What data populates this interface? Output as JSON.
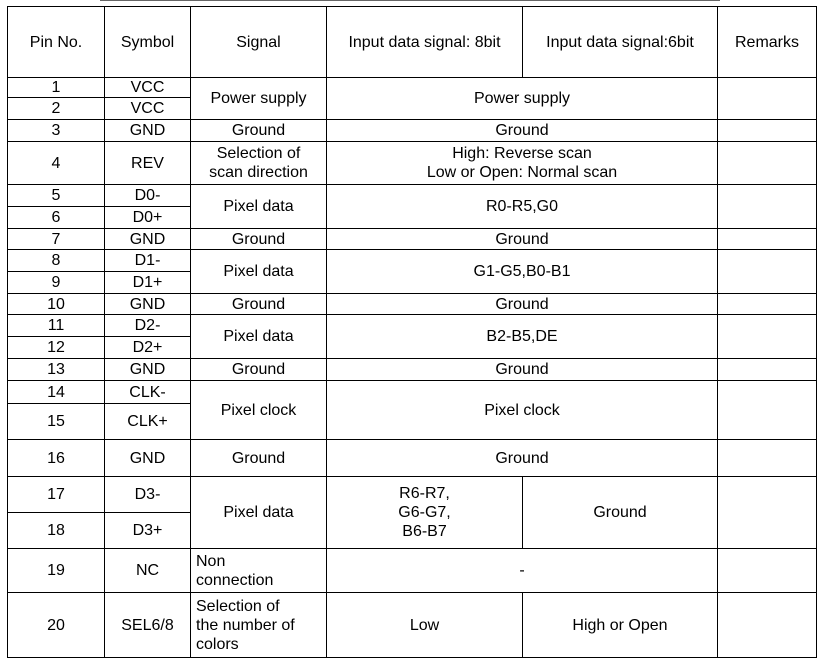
{
  "headers": [
    "Pin No.",
    "Symbol",
    "Signal",
    "Input data signal: 8bit",
    "Input data signal:6bit",
    "Remarks"
  ],
  "rows": {
    "r1": {
      "pin": "1",
      "sym": "VCC",
      "signal": "Power supply",
      "data": "Power supply"
    },
    "r2": {
      "pin": "2",
      "sym": "VCC"
    },
    "r3": {
      "pin": "3",
      "sym": "GND",
      "signal": "Ground",
      "data": "Ground"
    },
    "r4": {
      "pin": "4",
      "sym": "REV",
      "signal1": "Selection of",
      "signal2": "scan direction",
      "data1": "High: Reverse scan",
      "data2": "Low or Open: Normal scan"
    },
    "r5": {
      "pin": "5",
      "sym": "D0-",
      "signal": "Pixel data",
      "data": "R0-R5,G0"
    },
    "r6": {
      "pin": "6",
      "sym": "D0+"
    },
    "r7": {
      "pin": "7",
      "sym": "GND",
      "signal": "Ground",
      "data": "Ground"
    },
    "r8": {
      "pin": "8",
      "sym": "D1-",
      "signal": "Pixel data",
      "data": "G1-G5,B0-B1"
    },
    "r9": {
      "pin": "9",
      "sym": "D1+"
    },
    "r10": {
      "pin": "10",
      "sym": "GND",
      "signal": "Ground",
      "data": "Ground"
    },
    "r11": {
      "pin": "11",
      "sym": "D2-",
      "signal": "Pixel data",
      "data": "B2-B5,DE"
    },
    "r12": {
      "pin": "12",
      "sym": "D2+"
    },
    "r13": {
      "pin": "13",
      "sym": "GND",
      "signal": "Ground",
      "data": "Ground"
    },
    "r14": {
      "pin": "14",
      "sym": "CLK-",
      "signal": "Pixel clock",
      "data": "Pixel clock"
    },
    "r15": {
      "pin": "15",
      "sym": "CLK+"
    },
    "r16": {
      "pin": "16",
      "sym": "GND",
      "signal": "Ground",
      "data": "Ground"
    },
    "r17": {
      "pin": "17",
      "sym": "D3-",
      "signal": "Pixel data",
      "data8_1": "R6-R7,",
      "data8_2": "G6-G7,",
      "data8_3": "B6-B7",
      "data6": "Ground"
    },
    "r18": {
      "pin": "18",
      "sym": "D3+"
    },
    "r19": {
      "pin": "19",
      "sym": "NC",
      "signal1": "Non",
      "signal2": "connection",
      "data": "-"
    },
    "r20": {
      "pin": "20",
      "sym": "SEL6/8",
      "signal1": "Selection of",
      "signal2": "the number of",
      "signal3": "colors",
      "data8": "Low",
      "data6": "High or Open"
    }
  }
}
